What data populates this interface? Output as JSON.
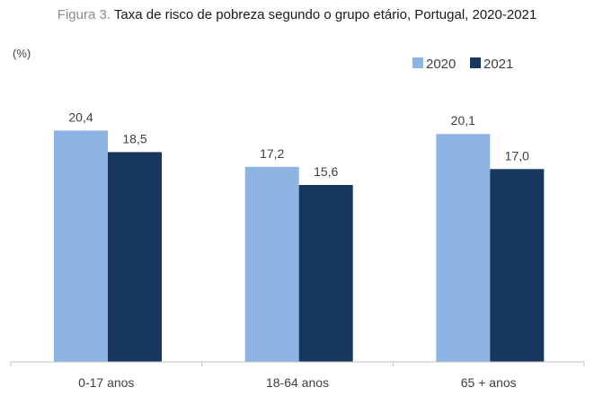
{
  "title": {
    "prefix": "Figura 3.",
    "main": "Taxa de risco de pobreza segundo o grupo etário, Portugal, 2020-2021"
  },
  "colors": {
    "2020": "#8eb4e3",
    "2021": "#17375e",
    "axis": "#bfbfbf"
  },
  "chart_data": {
    "type": "bar",
    "title": "Taxa de risco de pobreza segundo o grupo etário, Portugal, 2020-2021",
    "unit_label": "(%)",
    "xlabel": "",
    "ylabel": "",
    "categories": [
      "0-17  anos",
      "18-64 anos",
      "65 + anos"
    ],
    "series": [
      {
        "name": "2020",
        "values": [
          20.4,
          17.2,
          20.1
        ],
        "labels": [
          "20,4",
          "17,2",
          "20,1"
        ]
      },
      {
        "name": "2021",
        "values": [
          18.5,
          15.6,
          17.0
        ],
        "labels": [
          "18,5",
          "15,6",
          "17,0"
        ]
      }
    ],
    "ylim": [
      0,
      23.6
    ],
    "grid": false,
    "legend_position": "top-right"
  }
}
